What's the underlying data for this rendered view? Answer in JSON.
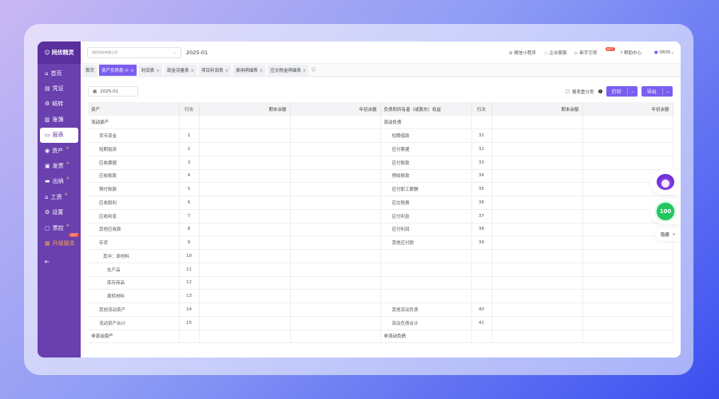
{
  "app": {
    "name": "同优精灵"
  },
  "sidebar": {
    "items": [
      {
        "label": "首页",
        "icon": "home-icon"
      },
      {
        "label": "凭证",
        "icon": "voucher-icon"
      },
      {
        "label": "结转",
        "icon": "gear-icon"
      },
      {
        "label": "账簿",
        "icon": "book-icon"
      },
      {
        "label": "报表",
        "icon": "monitor-icon",
        "active": true
      },
      {
        "label": "资产",
        "icon": "asset-icon",
        "crown": true
      },
      {
        "label": "发票",
        "icon": "invoice-icon",
        "crown": true
      },
      {
        "label": "出纳",
        "icon": "cashier-icon",
        "crown": true
      },
      {
        "label": "工资",
        "icon": "salary-icon",
        "crown": true
      },
      {
        "label": "设置",
        "icon": "settings-icon"
      },
      {
        "label": "票控",
        "icon": "ticket-control-icon",
        "crown": true
      },
      {
        "label": "升级版本",
        "icon": "upgrade-icon",
        "badge": "HOT"
      }
    ]
  },
  "header": {
    "company": "同优科技有限公司",
    "period": "2025-01",
    "links": [
      "微信小程序",
      "企业客服",
      "新手引导",
      "帮助中心"
    ],
    "hot_badge": "HOT",
    "user": "0605"
  },
  "tabs": [
    {
      "label": "首页"
    },
    {
      "label": "资产负债表",
      "active": true
    },
    {
      "label": "利润表"
    },
    {
      "label": "现金流量表"
    },
    {
      "label": "项目利润表"
    },
    {
      "label": "费用明细表"
    },
    {
      "label": "应交税金明细表"
    }
  ],
  "toolbar": {
    "date": "2025-01",
    "reclass_label": "报表重分类",
    "print": "打印",
    "export": "导出"
  },
  "table": {
    "headers": [
      "资产",
      "行次",
      "期末余额",
      "年初余额",
      "负债和所有者（或股东）权益",
      "行次",
      "期末余额",
      "年初余额"
    ],
    "rows": [
      [
        "流动资产",
        "",
        "流动负债",
        ""
      ],
      [
        "货币资金",
        "1",
        "短期借款",
        "31"
      ],
      [
        "短期投资",
        "2",
        "应付票据",
        "32"
      ],
      [
        "应收票据",
        "3",
        "应付账款",
        "33"
      ],
      [
        "应收账款",
        "4",
        "预收账款",
        "34"
      ],
      [
        "预付账款",
        "5",
        "应付职工薪酬",
        "35"
      ],
      [
        "应收股利",
        "6",
        "应交税费",
        "36"
      ],
      [
        "应收利息",
        "7",
        "应付利息",
        "37"
      ],
      [
        "其他应收款",
        "8",
        "应付利润",
        "38"
      ],
      [
        "存货",
        "9",
        "其他应付款",
        "39"
      ],
      [
        "其中：原材料",
        "10",
        "",
        ""
      ],
      [
        "在产品",
        "11",
        "",
        ""
      ],
      [
        "库存商品",
        "12",
        "",
        ""
      ],
      [
        "周转材料",
        "13",
        "",
        ""
      ],
      [
        "其他流动资产",
        "14",
        "其他流动负债",
        "40"
      ],
      [
        "流动资产合计",
        "15",
        "流动负债合计",
        "41"
      ],
      [
        "非流动资产",
        "",
        "非流动负债",
        ""
      ]
    ],
    "levels": [
      0,
      1,
      1,
      1,
      1,
      1,
      1,
      1,
      1,
      1,
      2,
      3,
      3,
      3,
      1,
      1,
      0
    ]
  },
  "float": {
    "score": "100",
    "hide": "隐藏"
  },
  "colors": {
    "sidebar": "#6a3fae",
    "accent": "#7b5ef0"
  }
}
